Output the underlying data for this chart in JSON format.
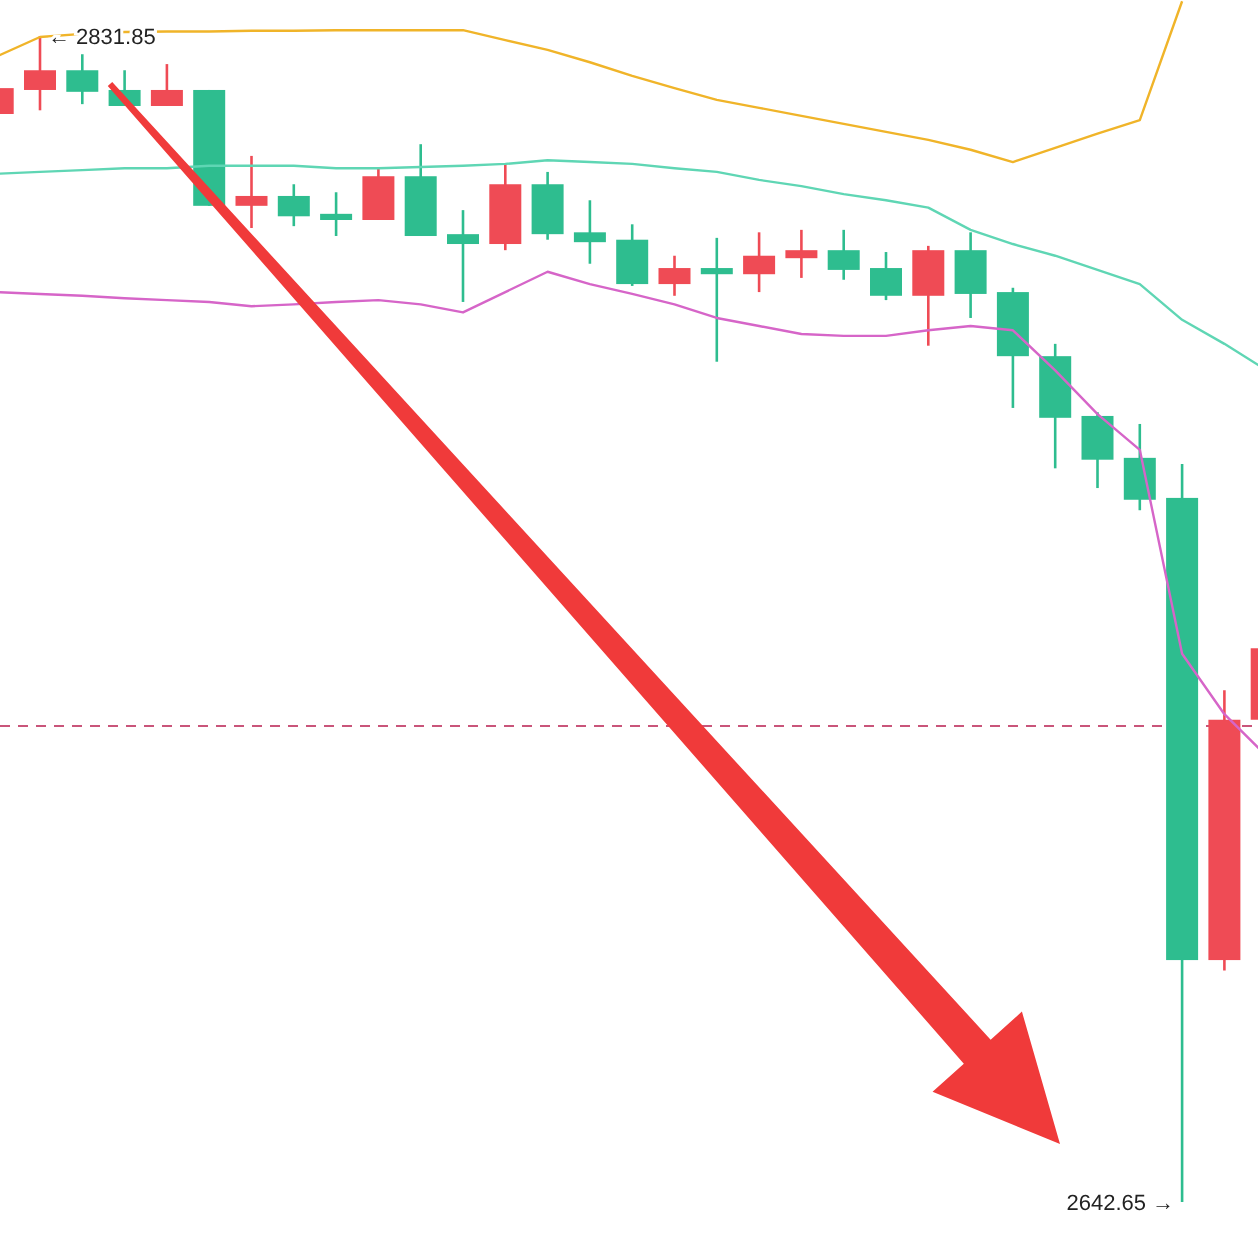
{
  "chart_data": {
    "type": "candlestick",
    "categories": [
      null,
      null,
      null,
      null,
      null,
      null,
      null,
      null,
      null,
      null,
      null,
      null,
      null,
      null,
      null,
      null,
      null,
      null,
      null,
      null,
      null,
      null,
      null,
      null,
      null,
      null,
      null,
      null,
      null,
      null,
      null
    ],
    "ohlc": [
      [
        2819.2,
        2823.4,
        2819.2,
        2823.4
      ],
      [
        2823.1,
        2831.85,
        2819.8,
        2826.3
      ],
      [
        2826.3,
        2828.9,
        2820.8,
        2822.8
      ],
      [
        2823.1,
        2826.3,
        2820.5,
        2820.5
      ],
      [
        2820.5,
        2827.3,
        2820.5,
        2823.1
      ],
      [
        2823.1,
        2823.1,
        2804.3,
        2804.3
      ],
      [
        2804.3,
        2812.4,
        2800.7,
        2805.9
      ],
      [
        2805.9,
        2807.8,
        2801.0,
        2802.6
      ],
      [
        2803.0,
        2806.5,
        2799.4,
        2802.0
      ],
      [
        2802.0,
        2810.4,
        2802.0,
        2809.1
      ],
      [
        2809.1,
        2814.3,
        2799.4,
        2799.4
      ],
      [
        2799.7,
        2803.6,
        2788.7,
        2798.1
      ],
      [
        2798.1,
        2811.1,
        2797.1,
        2807.8
      ],
      [
        2807.8,
        2809.8,
        2798.8,
        2799.7
      ],
      [
        2800.0,
        2805.2,
        2794.9,
        2798.4
      ],
      [
        2798.8,
        2801.3,
        2791.3,
        2791.6
      ],
      [
        2791.6,
        2796.2,
        2789.7,
        2794.2
      ],
      [
        2794.2,
        2799.1,
        2779.0,
        2793.2
      ],
      [
        2793.2,
        2800.0,
        2790.3,
        2796.2
      ],
      [
        2795.8,
        2800.4,
        2792.6,
        2797.1
      ],
      [
        2797.1,
        2800.4,
        2792.3,
        2793.9
      ],
      [
        2794.2,
        2796.8,
        2789.0,
        2789.7
      ],
      [
        2789.7,
        2797.8,
        2781.6,
        2797.1
      ],
      [
        2797.1,
        2800.0,
        2786.1,
        2790.0
      ],
      [
        2790.3,
        2791.0,
        2771.5,
        2779.9
      ],
      [
        2779.9,
        2781.9,
        2761.7,
        2769.9
      ],
      [
        2770.2,
        2770.8,
        2758.5,
        2763.1
      ],
      [
        2763.4,
        2768.9,
        2754.9,
        2756.6
      ],
      [
        2756.9,
        2762.4,
        2642.65,
        2681.9
      ],
      [
        2681.9,
        2725.7,
        2680.2,
        2720.9
      ],
      [
        2720.9,
        2733.2,
        2720.2,
        2732.5
      ]
    ],
    "colors": [
      "#ef4b55",
      "#ef4b55",
      "#2ebd8f",
      "#2ebd8f",
      "#ef4b55",
      "#2ebd8f",
      "#ef4b55",
      "#2ebd8f",
      "#2ebd8f",
      "#ef4b55",
      "#2ebd8f",
      "#2ebd8f",
      "#ef4b55",
      "#2ebd8f",
      "#2ebd8f",
      "#2ebd8f",
      "#ef4b55",
      "#2ebd8f",
      "#ef4b55",
      "#ef4b55",
      "#2ebd8f",
      "#2ebd8f",
      "#ef4b55",
      "#2ebd8f",
      "#2ebd8f",
      "#2ebd8f",
      "#2ebd8f",
      "#2ebd8f",
      "#2ebd8f",
      "#ef4b55",
      "#ef4b55"
    ],
    "series": [
      {
        "type": "line",
        "color": "#f0b429",
        "values": [
          2828.6,
          2831.7,
          2832.2,
          2832.5,
          2832.6,
          2832.6,
          2832.7,
          2832.7,
          2832.8,
          2832.8,
          2832.8,
          2832.8,
          2831.2,
          2829.6,
          2827.6,
          2825.4,
          2823.4,
          2821.5,
          2820.2,
          2818.9,
          2817.6,
          2816.3,
          2815.0,
          2813.4,
          2811.4,
          2813.7,
          2816.0,
          2818.2,
          2837.5,
          null,
          null
        ]
      },
      {
        "type": "line",
        "color": "#5fd6b4",
        "values": [
          2809.5,
          2809.8,
          2810.1,
          2810.4,
          2810.4,
          2810.8,
          2810.8,
          2810.8,
          2810.4,
          2810.4,
          2810.6,
          2810.8,
          2811.1,
          2811.7,
          2811.4,
          2811.1,
          2810.4,
          2809.8,
          2808.5,
          2807.5,
          2806.2,
          2805.2,
          2804.0,
          2800.4,
          2798.1,
          2796.2,
          2793.9,
          2791.6,
          2785.8,
          2781.9,
          2777.6
        ]
      },
      {
        "type": "line",
        "color": "#d665c8",
        "values": [
          2790.3,
          2790.0,
          2789.7,
          2789.3,
          2789.0,
          2788.7,
          2788.0,
          2788.3,
          2788.7,
          2789.0,
          2788.3,
          2787.0,
          2790.3,
          2793.6,
          2791.6,
          2790.0,
          2788.3,
          2786.1,
          2784.8,
          2783.5,
          2783.2,
          2783.2,
          2784.1,
          2784.8,
          2784.1,
          2777.6,
          2770.5,
          2764.7,
          2731.6,
          2721.8,
          2715.0
        ]
      }
    ],
    "ref_lines": [
      {
        "axis": "y",
        "value": 2719.9,
        "color": "#c9557a",
        "line_style": "dashed"
      }
    ],
    "ylim": [
      2635.5,
      2837.7
    ],
    "annotations": [
      {
        "text": "← 2831.85",
        "y": 2831.85
      },
      "2642.65 →"
    ]
  }
}
